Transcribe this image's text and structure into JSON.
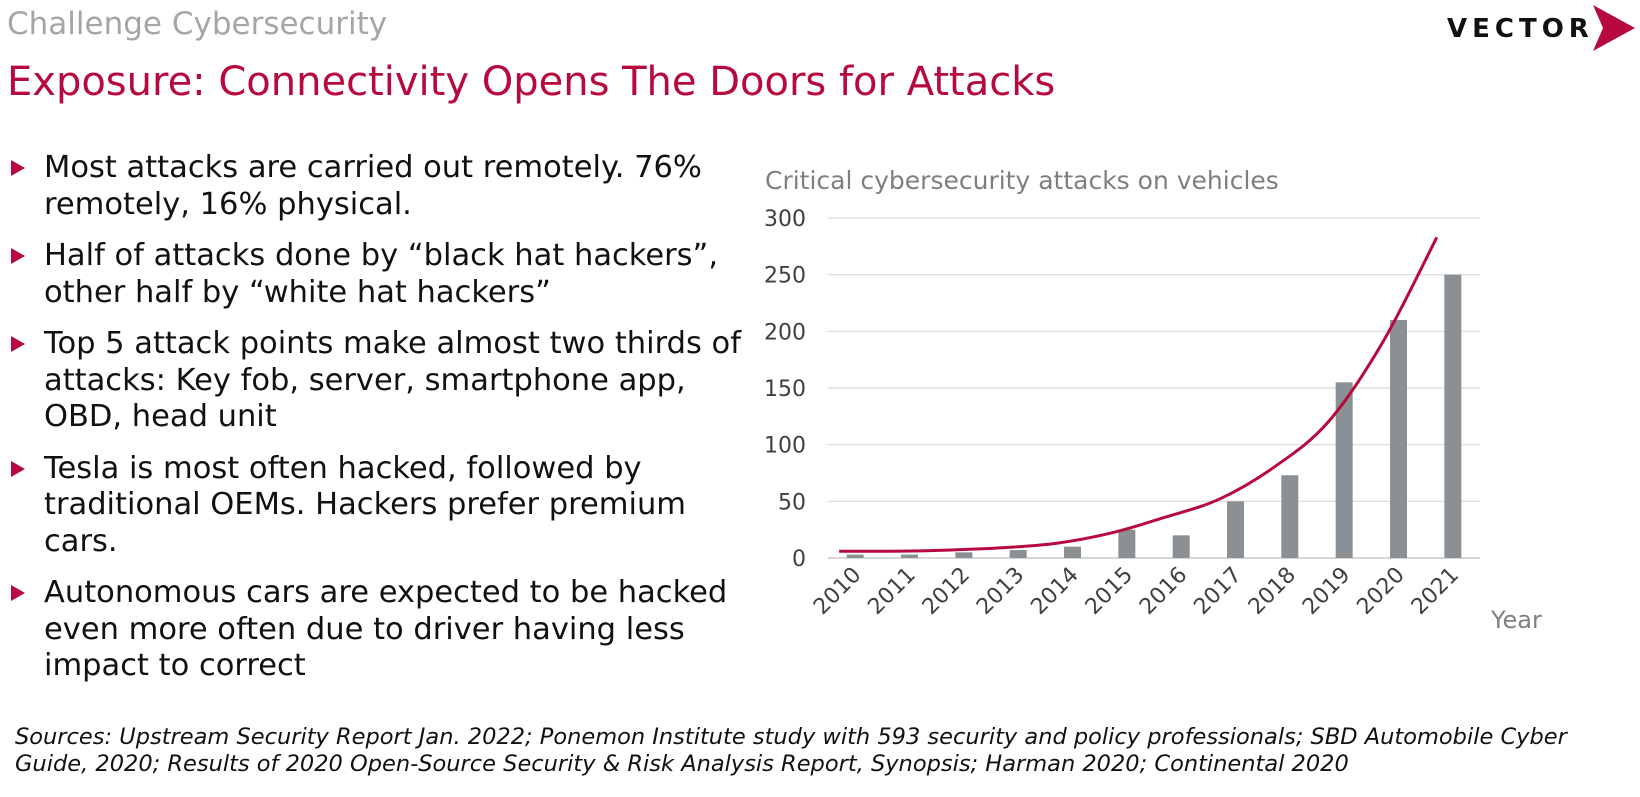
{
  "header": {
    "kicker": "Challenge Cybersecurity",
    "title": "Exposure: Connectivity Opens The Doors for Attacks",
    "logo_text": "VECTOR",
    "accent_color": "#b7093d"
  },
  "bullets": [
    "Most attacks are carried out remotely. 76% remotely, 16% physical.",
    "Half of attacks done by “black hat hackers”, other half by “white hat hackers”",
    "Top 5 attack points make almost two thirds of attacks: Key fob, server, smartphone app, OBD, head unit",
    "Tesla is most often hacked, followed by traditional OEMs. Hackers prefer premium cars.",
    "Autonomous cars are expected to be hacked even more often due to driver having less impact to correct"
  ],
  "chart_data": {
    "type": "bar",
    "title": "Critical cybersecurity attacks on vehicles",
    "xlabel": "Year",
    "ylabel": "",
    "categories": [
      "2010",
      "2011",
      "2012",
      "2013",
      "2014",
      "2015",
      "2016",
      "2017",
      "2018",
      "2019",
      "2020",
      "2021"
    ],
    "series": [
      {
        "type": "bar",
        "color": "#8b9094",
        "values": [
          3,
          3,
          5,
          7,
          10,
          25,
          20,
          50,
          73,
          155,
          210,
          250
        ]
      },
      {
        "type": "line",
        "subtype": "trendline",
        "color": "#b7093d",
        "values": [
          6,
          6,
          7,
          9,
          13,
          22,
          36,
          52,
          80,
          120,
          190,
          283
        ]
      }
    ],
    "ylim": [
      0,
      300
    ],
    "yticks": [
      0,
      50,
      100,
      150,
      200,
      250,
      300
    ],
    "grid": true,
    "legend": "none"
  },
  "footer": {
    "sources": "Sources: Upstream Security Report Jan. 2022; Ponemon Institute study with 593 security and policy professionals; SBD Automobile Cyber Guide, 2020; Results of 2020 Open-Source Security & Risk Analysis Report, Synopsis; Harman 2020; Continental 2020"
  }
}
